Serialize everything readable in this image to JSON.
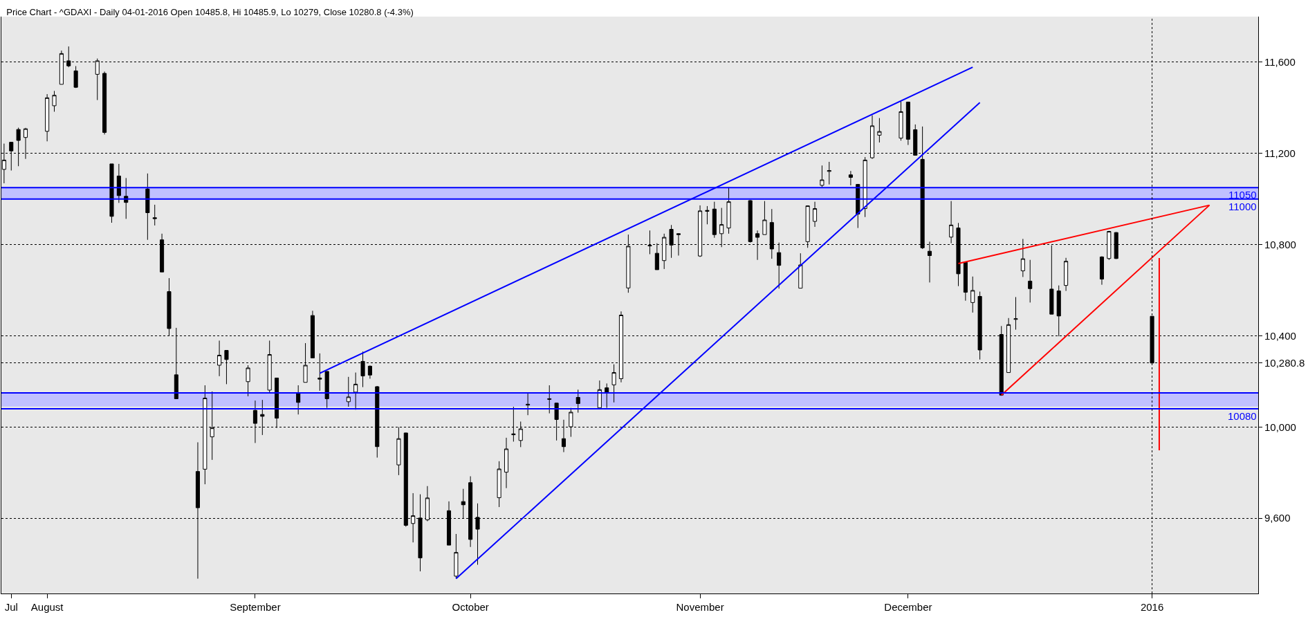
{
  "chart_data": {
    "type": "candlestick",
    "title": "Price Chart - ^GDAXI - Daily 04-01-2016 Open 10485.8, Hi 10485.9, Lo 10279, Close 10280.8 (-4.3%)",
    "x": [
      "2015-07-28",
      "2015-07-29",
      "2015-07-30",
      "2015-07-31",
      "2015-08-03",
      "2015-08-04",
      "2015-08-05",
      "2015-08-06",
      "2015-08-07",
      "2015-08-10",
      "2015-08-11",
      "2015-08-12",
      "2015-08-13",
      "2015-08-14",
      "2015-08-17",
      "2015-08-18",
      "2015-08-19",
      "2015-08-20",
      "2015-08-21",
      "2015-08-24",
      "2015-08-25",
      "2015-08-26",
      "2015-08-27",
      "2015-08-28",
      "2015-08-31",
      "2015-09-01",
      "2015-09-02",
      "2015-09-03",
      "2015-09-04",
      "2015-09-07",
      "2015-09-08",
      "2015-09-09",
      "2015-09-10",
      "2015-09-11",
      "2015-09-14",
      "2015-09-15",
      "2015-09-16",
      "2015-09-17",
      "2015-09-18",
      "2015-09-21",
      "2015-09-22",
      "2015-09-23",
      "2015-09-24",
      "2015-09-25",
      "2015-09-28",
      "2015-09-29",
      "2015-09-30",
      "2015-10-01",
      "2015-10-02",
      "2015-10-05",
      "2015-10-06",
      "2015-10-07",
      "2015-10-08",
      "2015-10-09",
      "2015-10-12",
      "2015-10-13",
      "2015-10-14",
      "2015-10-15",
      "2015-10-16",
      "2015-10-19",
      "2015-10-20",
      "2015-10-21",
      "2015-10-22",
      "2015-10-23",
      "2015-10-26",
      "2015-10-27",
      "2015-10-28",
      "2015-10-29",
      "2015-10-30",
      "2015-11-02",
      "2015-11-03",
      "2015-11-04",
      "2015-11-05",
      "2015-11-06",
      "2015-11-09",
      "2015-11-10",
      "2015-11-11",
      "2015-11-12",
      "2015-11-13",
      "2015-11-16",
      "2015-11-17",
      "2015-11-18",
      "2015-11-19",
      "2015-11-20",
      "2015-11-23",
      "2015-11-24",
      "2015-11-25",
      "2015-11-26",
      "2015-11-27",
      "2015-11-30",
      "2015-12-01",
      "2015-12-02",
      "2015-12-03",
      "2015-12-04",
      "2015-12-07",
      "2015-12-08",
      "2015-12-09",
      "2015-12-10",
      "2015-12-11",
      "2015-12-14",
      "2015-12-15",
      "2015-12-16",
      "2015-12-17",
      "2015-12-18",
      "2015-12-21",
      "2015-12-22",
      "2015-12-23",
      "2015-12-28",
      "2015-12-29",
      "2015-12-30",
      "2016-01-04"
    ],
    "ohlc": [
      [
        11130,
        11243,
        11069,
        11171
      ],
      [
        11249,
        11249,
        11125,
        11211
      ],
      [
        11305,
        11313,
        11144,
        11257
      ],
      [
        11270,
        11312,
        11176,
        11308
      ],
      [
        11297,
        11460,
        11253,
        11444
      ],
      [
        11409,
        11474,
        11383,
        11455
      ],
      [
        11503,
        11651,
        11503,
        11638
      ],
      [
        11606,
        11669,
        11578,
        11584
      ],
      [
        11562,
        11583,
        11487,
        11490
      ],
      [
        11547,
        11616,
        11434,
        11606
      ],
      [
        11551,
        11559,
        11283,
        11292
      ],
      [
        11154,
        11154,
        10896,
        10924
      ],
      [
        11101,
        11154,
        10983,
        11015
      ],
      [
        11012,
        11092,
        10913,
        10985
      ],
      [
        11044,
        11112,
        10821,
        10940
      ],
      [
        10918,
        10975,
        10884,
        10914
      ],
      [
        10821,
        10848,
        10680,
        10680
      ],
      [
        10594,
        10653,
        10400,
        10432
      ],
      [
        10229,
        10435,
        10124,
        10124
      ],
      [
        9805,
        9933,
        9335,
        9646
      ],
      [
        9815,
        10183,
        9749,
        10127
      ],
      [
        9957,
        10156,
        9856,
        9996
      ],
      [
        10271,
        10379,
        10223,
        10315
      ],
      [
        10336,
        10336,
        10188,
        10296
      ],
      [
        10199,
        10271,
        10135,
        10259
      ],
      [
        10073,
        10116,
        9930,
        10016
      ],
      [
        10055,
        10119,
        9965,
        10047
      ],
      [
        10162,
        10379,
        10148,
        10318
      ],
      [
        10215,
        10215,
        9996,
        10039
      ],
      [
        10148,
        10183,
        10055,
        10108
      ],
      [
        10196,
        10368,
        10196,
        10271
      ],
      [
        10489,
        10510,
        10303,
        10303
      ],
      [
        10215,
        10323,
        10159,
        10210
      ],
      [
        10244,
        10244,
        10084,
        10124
      ],
      [
        10111,
        10220,
        10089,
        10132
      ],
      [
        10153,
        10239,
        10076,
        10188
      ],
      [
        10288,
        10331,
        10175,
        10224
      ],
      [
        10267,
        10270,
        10212,
        10228
      ],
      [
        10177,
        10180,
        9866,
        9914
      ],
      [
        9834,
        10000,
        9789,
        9949
      ],
      [
        9974,
        9975,
        9563,
        9569
      ],
      [
        9577,
        9710,
        9494,
        9611
      ],
      [
        9601,
        9705,
        9367,
        9426
      ],
      [
        9593,
        9741,
        9587,
        9689
      ],
      [
        9633,
        9674,
        9482,
        9482
      ],
      [
        9346,
        9531,
        9335,
        9450
      ],
      [
        9673,
        9729,
        9598,
        9659
      ],
      [
        9756,
        9784,
        9474,
        9507
      ],
      [
        9604,
        9665,
        9396,
        9552
      ],
      [
        9690,
        9850,
        9649,
        9816
      ],
      [
        9802,
        9953,
        9732,
        9904
      ],
      [
        9966,
        10089,
        9936,
        9970
      ],
      [
        9941,
        10024,
        9912,
        9992
      ],
      [
        10096,
        10148,
        10052,
        10100
      ],
      [
        10121,
        10183,
        10060,
        10124
      ],
      [
        10105,
        10107,
        9941,
        10033
      ],
      [
        9949,
        10032,
        9890,
        9914
      ],
      [
        10001,
        10084,
        9957,
        10065
      ],
      [
        10130,
        10164,
        10063,
        10103
      ],
      [
        10084,
        10204,
        10084,
        10164
      ],
      [
        10172,
        10191,
        10084,
        10151
      ],
      [
        10185,
        10275,
        10108,
        10239
      ],
      [
        10212,
        10507,
        10196,
        10491
      ],
      [
        10610,
        10844,
        10589,
        10793
      ],
      [
        10794,
        10862,
        10758,
        10797
      ],
      [
        10762,
        10806,
        10690,
        10690
      ],
      [
        10730,
        10848,
        10693,
        10832
      ],
      [
        10867,
        10886,
        10742,
        10798
      ],
      [
        10848,
        10850,
        10752,
        10844
      ],
      [
        10750,
        10972,
        10746,
        10948
      ],
      [
        10946,
        10969,
        10889,
        10950
      ],
      [
        10956,
        10988,
        10830,
        10844
      ],
      [
        10848,
        10961,
        10789,
        10888
      ],
      [
        10873,
        11052,
        10848,
        10988
      ],
      [
        10993,
        10995,
        10809,
        10813
      ],
      [
        10848,
        10862,
        10733,
        10832
      ],
      [
        10844,
        10991,
        10844,
        10908
      ],
      [
        10897,
        10956,
        10738,
        10781
      ],
      [
        10765,
        10809,
        10607,
        10709
      ],
      [
        10609,
        10762,
        10609,
        10711
      ],
      [
        10813,
        10972,
        10786,
        10970
      ],
      [
        10902,
        10988,
        10878,
        10958
      ],
      [
        11060,
        11147,
        11052,
        11084
      ],
      [
        11121,
        11163,
        11064,
        11125
      ],
      [
        11106,
        11123,
        11060,
        11095
      ],
      [
        11064,
        11066,
        10873,
        10934
      ],
      [
        10958,
        11184,
        10921,
        11171
      ],
      [
        11181,
        11367,
        11176,
        11321
      ],
      [
        11280,
        11355,
        11248,
        11296
      ],
      [
        11267,
        11428,
        11256,
        11383
      ],
      [
        11425,
        11427,
        11237,
        11262
      ],
      [
        11304,
        11327,
        11190,
        11192
      ],
      [
        11174,
        11318,
        10781,
        10786
      ],
      [
        10771,
        10813,
        10634,
        10752
      ],
      [
        10833,
        10991,
        10806,
        10886
      ],
      [
        10873,
        10895,
        10618,
        10672
      ],
      [
        10722,
        10724,
        10554,
        10591
      ],
      [
        10546,
        10660,
        10502,
        10599
      ],
      [
        10573,
        10594,
        10296,
        10338
      ],
      [
        10406,
        10443,
        10137,
        10140
      ],
      [
        10239,
        10478,
        10239,
        10449
      ],
      [
        10472,
        10570,
        10427,
        10475
      ],
      [
        10685,
        10825,
        10658,
        10738
      ],
      [
        10640,
        10733,
        10546,
        10607
      ],
      [
        10605,
        10797,
        10495,
        10495
      ],
      [
        10597,
        10621,
        10398,
        10487
      ],
      [
        10621,
        10742,
        10597,
        10727
      ],
      [
        10746,
        10749,
        10624,
        10649
      ],
      [
        10739,
        10860,
        10733,
        10858
      ],
      [
        10853,
        10855,
        10737,
        10739
      ],
      [
        10485.8,
        10485.9,
        10279,
        10280.8
      ]
    ],
    "series": [
      {
        "type": "line",
        "color": "#0000ff",
        "x": [
          "2015-09-10",
          "2015-12-10"
        ],
        "values": [
          10236,
          11578
        ]
      },
      {
        "type": "line",
        "color": "#0000ff",
        "x": [
          "2015-09-29",
          "2015-12-11"
        ],
        "values": [
          9335,
          11423
        ]
      },
      {
        "type": "line",
        "color": "#ff0000",
        "x": [
          "2015-12-08",
          "2016-01-12"
        ],
        "values": [
          10717,
          10973
        ]
      },
      {
        "type": "line",
        "color": "#ff0000",
        "x": [
          "2015-12-14",
          "2016-01-12"
        ],
        "values": [
          10140,
          10973
        ]
      },
      {
        "type": "line",
        "color": "#ff0000",
        "x": [
          "2016-01-05",
          "2016-01-05"
        ],
        "values": [
          10741,
          9898
        ]
      }
    ],
    "xlim": [
      "2015-07-27T15:00",
      "2016-01-18T19:00"
    ],
    "xticks": [
      {
        "value": "2015-07-29",
        "label": "Jul"
      },
      {
        "value": "2015-08-03",
        "label": "August"
      },
      {
        "value": "2015-09-01",
        "label": "September"
      },
      {
        "value": "2015-10-01",
        "label": "October"
      },
      {
        "value": "2015-11-02",
        "label": "November"
      },
      {
        "value": "2015-12-01",
        "label": "December"
      },
      {
        "value": "2016-01-04",
        "label": "2016"
      }
    ],
    "ylim": [
      9270,
      11800
    ],
    "yticks": [
      {
        "value": 9600,
        "label": "9,600"
      },
      {
        "value": 10000,
        "label": "10,000"
      },
      {
        "value": 10280.8,
        "label": "10,280.8"
      },
      {
        "value": 10400,
        "label": "10,400"
      },
      {
        "value": 10800,
        "label": "10,800"
      },
      {
        "value": 11200,
        "label": "11,200"
      },
      {
        "value": 11600,
        "label": "11,600"
      }
    ],
    "grid": "y",
    "ref_lines": [
      {
        "axis": "y",
        "value": 11050,
        "label": "11050",
        "color": "#0000ff"
      },
      {
        "axis": "y",
        "value": 11000,
        "label": "11000",
        "color": "#0000ff"
      },
      {
        "axis": "y",
        "value": 10150,
        "label": null,
        "color": "#0000ff"
      },
      {
        "axis": "y",
        "value": 10080,
        "label": "10080",
        "color": "#0000ff"
      },
      {
        "axis": "x",
        "value": "2016-01-04",
        "label": null,
        "color": "#000000",
        "line_style": "dotted"
      }
    ],
    "bands": [
      {
        "axis": "y",
        "from": 11000,
        "to": 11050,
        "label": null,
        "color": "#c0c0ff"
      },
      {
        "axis": "y",
        "from": 10090,
        "to": 10150,
        "label": null,
        "color": "#c0c0ff"
      }
    ]
  }
}
